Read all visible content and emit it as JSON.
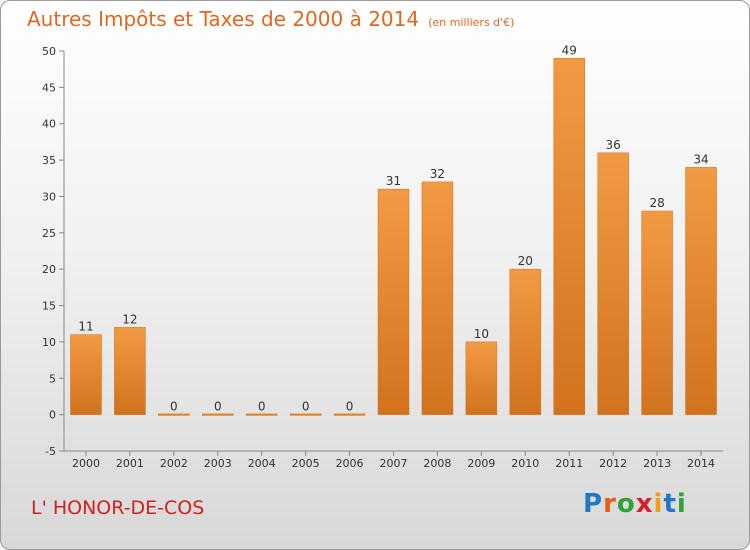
{
  "title": {
    "main": "Autres Impôts et Taxes de 2000 à 2014",
    "unit": "(en milliers d'€)"
  },
  "commune": "L' HONOR-DE-COS",
  "logo": {
    "letters": [
      "P",
      "r",
      "o",
      "x",
      "i",
      "t",
      "i"
    ],
    "colors": [
      "#1f78c8",
      "#e85d12",
      "#2aa33a",
      "#d61f2c",
      "#f0a012",
      "#1f78c8",
      "#2aa33a"
    ]
  },
  "chart_data": {
    "type": "bar",
    "categories": [
      "2000",
      "2001",
      "2002",
      "2003",
      "2004",
      "2005",
      "2006",
      "2007",
      "2008",
      "2009",
      "2010",
      "2011",
      "2012",
      "2013",
      "2014"
    ],
    "values": [
      11,
      12,
      0,
      0,
      0,
      0,
      0,
      31,
      32,
      10,
      20,
      49,
      36,
      28,
      34
    ],
    "data_labels": [
      "11",
      "12",
      "0",
      "0",
      "0",
      "0",
      "0",
      "31",
      "32",
      "10",
      "20",
      "49",
      "36",
      "28",
      "34"
    ],
    "y_ticks": [
      "-5",
      "0",
      "5",
      "10",
      "15",
      "20",
      "25",
      "30",
      "35",
      "40",
      "45",
      "50"
    ],
    "ylim": [
      -5,
      50
    ],
    "grid": false,
    "bar_color": "#f29a43",
    "bar_color_dark": "#d2721c"
  }
}
